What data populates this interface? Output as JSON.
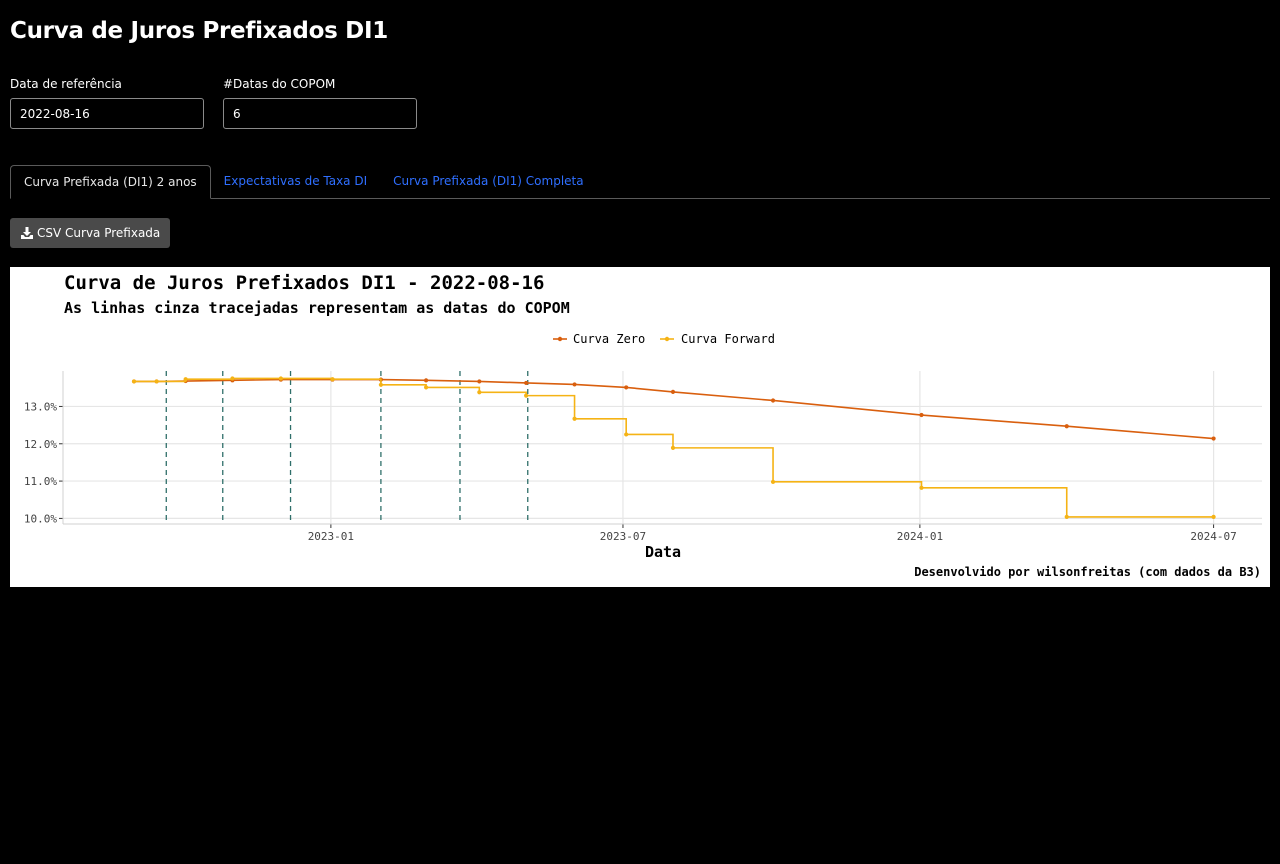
{
  "app": {
    "title": "Curva de Juros Prefixados DI1"
  },
  "inputs": {
    "reference_date": {
      "label": "Data de referência",
      "value": "2022-08-16"
    },
    "copom_dates": {
      "label": "#Datas do COPOM",
      "value": "6"
    }
  },
  "tabs": [
    {
      "label": "Curva Prefixada (DI1) 2 anos",
      "active": true
    },
    {
      "label": "Expectativas de Taxa DI",
      "active": false
    },
    {
      "label": "Curva Prefixada (DI1) Completa",
      "active": false
    }
  ],
  "toolbar": {
    "csv_button_label": "CSV Curva Prefixada",
    "csv_button_icon": "download-icon"
  },
  "chart_data": {
    "type": "line",
    "title": "Curva de Juros Prefixados DI1 - 2022-08-16",
    "subtitle": "As linhas cinza tracejadas representam as datas do COPOM",
    "xlabel": "Data",
    "ylabel": "",
    "caption": "Desenvolvido por wilsonfreitas (com dados da B3)",
    "legend_position": "top-center",
    "grid": true,
    "x_ticks": [
      "2023-01",
      "2023-07",
      "2024-01",
      "2024-07"
    ],
    "y_ticks": [
      "10.0%",
      "11.0%",
      "12.0%",
      "13.0%"
    ],
    "ylim": [
      9.85,
      13.95
    ],
    "xlim": [
      "2022-07-19",
      "2024-07-31"
    ],
    "copom_dates": [
      "2022-09-21",
      "2022-10-26",
      "2022-12-07",
      "2023-02-01",
      "2023-03-22",
      "2023-05-03"
    ],
    "series": [
      {
        "name": "Curva Zero",
        "color": "#d95f0e",
        "step": false,
        "points": [
          [
            "2022-09-01",
            13.67
          ],
          [
            "2022-09-15",
            13.67
          ],
          [
            "2022-10-03",
            13.68
          ],
          [
            "2022-11-01",
            13.7
          ],
          [
            "2022-12-01",
            13.72
          ],
          [
            "2023-01-02",
            13.72
          ],
          [
            "2023-02-01",
            13.72
          ],
          [
            "2023-03-01",
            13.7
          ],
          [
            "2023-04-03",
            13.67
          ],
          [
            "2023-05-02",
            13.63
          ],
          [
            "2023-06-01",
            13.59
          ],
          [
            "2023-07-03",
            13.51
          ],
          [
            "2023-08-01",
            13.39
          ],
          [
            "2023-10-02",
            13.16
          ],
          [
            "2024-01-02",
            12.77
          ],
          [
            "2024-04-01",
            12.47
          ],
          [
            "2024-07-01",
            12.14
          ]
        ]
      },
      {
        "name": "Curva Forward",
        "color": "#f5b315",
        "step": true,
        "points": [
          [
            "2022-09-01",
            13.67
          ],
          [
            "2022-09-15",
            13.67
          ],
          [
            "2022-10-03",
            13.73
          ],
          [
            "2022-11-01",
            13.75
          ],
          [
            "2022-12-01",
            13.75
          ],
          [
            "2023-01-02",
            13.73
          ],
          [
            "2023-02-01",
            13.58
          ],
          [
            "2023-03-01",
            13.51
          ],
          [
            "2023-04-03",
            13.38
          ],
          [
            "2023-05-02",
            13.29
          ],
          [
            "2023-06-01",
            12.67
          ],
          [
            "2023-07-03",
            12.25
          ],
          [
            "2023-08-01",
            11.89
          ],
          [
            "2023-10-02",
            10.98
          ],
          [
            "2024-01-02",
            10.82
          ],
          [
            "2024-04-01",
            10.04
          ],
          [
            "2024-07-01",
            10.04
          ]
        ]
      }
    ]
  }
}
